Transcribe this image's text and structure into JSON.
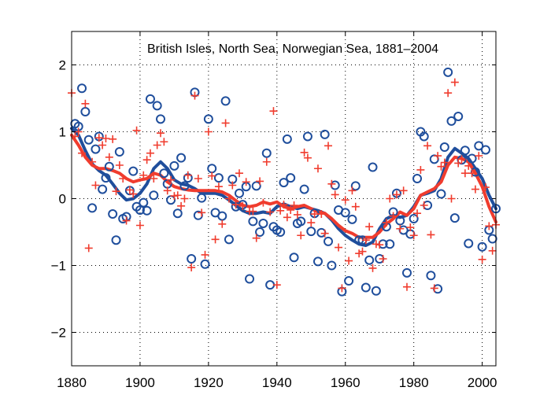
{
  "chart_data": {
    "type": "scatter",
    "title": "British Isles, North Sea, Norwegian Sea, 1881–2004",
    "xlabel": "",
    "ylabel": "",
    "xlim": [
      1880,
      2004
    ],
    "ylim": [
      -2.5,
      2.5
    ],
    "x_ticks": [
      1880,
      1900,
      1920,
      1940,
      1960,
      1980,
      2000
    ],
    "y_ticks": [
      -2,
      -1,
      0,
      1,
      2
    ],
    "grid": true,
    "legend": "none",
    "colors": {
      "blue": "#1f4e9c",
      "red": "#f03c2e"
    },
    "series": [
      {
        "name": "circles",
        "type": "scatter",
        "marker": "circle",
        "color": "#1f4e9c",
        "x": [
          1881,
          1882,
          1883,
          1884,
          1885,
          1886,
          1887,
          1888,
          1889,
          1890,
          1891,
          1892,
          1893,
          1894,
          1895,
          1896,
          1897,
          1898,
          1899,
          1900,
          1901,
          1902,
          1903,
          1904,
          1905,
          1906,
          1907,
          1908,
          1909,
          1910,
          1911,
          1912,
          1913,
          1914,
          1915,
          1916,
          1917,
          1918,
          1919,
          1920,
          1921,
          1922,
          1923,
          1924,
          1925,
          1926,
          1927,
          1928,
          1929,
          1930,
          1931,
          1932,
          1933,
          1934,
          1935,
          1936,
          1937,
          1938,
          1939,
          1940,
          1941,
          1942,
          1943,
          1944,
          1945,
          1946,
          1947,
          1948,
          1949,
          1950,
          1951,
          1952,
          1953,
          1954,
          1955,
          1956,
          1957,
          1958,
          1959,
          1960,
          1961,
          1962,
          1963,
          1964,
          1965,
          1966,
          1967,
          1968,
          1969,
          1970,
          1971,
          1972,
          1973,
          1974,
          1975,
          1976,
          1977,
          1978,
          1979,
          1980,
          1981,
          1982,
          1983,
          1984,
          1985,
          1986,
          1987,
          1988,
          1989,
          1990,
          1991,
          1992,
          1993,
          1994,
          1995,
          1996,
          1997,
          1998,
          1999,
          2000,
          2001,
          2002,
          2003,
          2004
        ],
        "y": [
          1.12,
          1.08,
          1.65,
          1.3,
          0.88,
          -0.14,
          0.74,
          0.93,
          0.14,
          0.31,
          0.48,
          -0.23,
          -0.62,
          0.7,
          -0.3,
          -0.27,
          0.12,
          0.41,
          -0.12,
          -0.17,
          -0.06,
          -0.18,
          1.49,
          0.05,
          1.39,
          1.19,
          0.38,
          0.22,
          -0.02,
          0.49,
          -0.22,
          0.61,
          0.19,
          0.31,
          -0.9,
          1.59,
          -0.25,
          0.01,
          -0.98,
          1.19,
          0.45,
          -0.21,
          0.31,
          -0.26,
          1.46,
          -0.61,
          0.29,
          -0.12,
          0.08,
          -0.09,
          0.18,
          -1.2,
          -0.34,
          0.19,
          -0.5,
          -0.37,
          0.68,
          -1.29,
          -0.42,
          -0.47,
          -0.5,
          0.24,
          0.89,
          0.31,
          -0.88,
          -0.37,
          -0.34,
          0.14,
          0.93,
          -0.49,
          -0.22,
          -0.94,
          -0.51,
          0.96,
          -0.64,
          -1.0,
          0.2,
          -0.17,
          -1.39,
          -0.21,
          -1.23,
          -0.31,
          0.19,
          -0.62,
          -0.62,
          -1.33,
          -0.92,
          0.47,
          -1.38,
          -0.9,
          -0.68,
          -0.42,
          -0.68,
          -0.2,
          0.08,
          -0.33,
          -0.47,
          -1.11,
          -0.53,
          -0.3,
          0.3,
          1.0,
          0.93,
          -0.1,
          -1.15,
          0.59,
          -1.35,
          0.07,
          0.77,
          1.89,
          1.16,
          -0.29,
          1.23,
          0.58,
          0.72,
          -0.67,
          0.6,
          0.4,
          0.79,
          -0.72,
          0.73,
          -0.47,
          -0.6,
          -0.15
        ]
      },
      {
        "name": "crosses",
        "type": "scatter",
        "marker": "plus",
        "color": "#f03c2e",
        "x": [
          1880,
          1881,
          1882,
          1883,
          1884,
          1885,
          1886,
          1887,
          1888,
          1889,
          1890,
          1891,
          1892,
          1893,
          1894,
          1895,
          1896,
          1897,
          1898,
          1899,
          1900,
          1901,
          1902,
          1903,
          1904,
          1905,
          1906,
          1907,
          1908,
          1909,
          1910,
          1911,
          1912,
          1913,
          1914,
          1915,
          1916,
          1917,
          1918,
          1919,
          1920,
          1921,
          1922,
          1923,
          1924,
          1925,
          1926,
          1927,
          1928,
          1929,
          1930,
          1931,
          1932,
          1933,
          1934,
          1935,
          1936,
          1937,
          1938,
          1939,
          1940,
          1941,
          1942,
          1943,
          1944,
          1945,
          1946,
          1947,
          1948,
          1949,
          1950,
          1951,
          1952,
          1953,
          1954,
          1955,
          1956,
          1957,
          1958,
          1959,
          1960,
          1961,
          1962,
          1963,
          1964,
          1965,
          1966,
          1967,
          1968,
          1969,
          1970,
          1971,
          1972,
          1973,
          1974,
          1975,
          1976,
          1977,
          1978,
          1979,
          1980,
          1981,
          1982,
          1983,
          1984,
          1985,
          1986,
          1987,
          1988,
          1989,
          1990,
          1991,
          1992,
          1993,
          1994,
          1995,
          1996,
          1997,
          1998,
          1999,
          2000,
          2001,
          2002,
          2003,
          2004
        ],
        "y": [
          1.58,
          0.93,
          1.0,
          0.68,
          1.42,
          -0.74,
          0.55,
          0.2,
          0.91,
          0.8,
          0.9,
          0.62,
          0.89,
          0.11,
          0.5,
          0.3,
          -0.33,
          0.13,
          0.07,
          1.02,
          -0.4,
          0.35,
          0.58,
          0.68,
          0.3,
          0.8,
          0.98,
          0.85,
          0.12,
          0.28,
          0.04,
          0.05,
          -0.11,
          0.0,
          0.35,
          -1.03,
          1.54,
          0.3,
          -0.21,
          -0.84,
          1.0,
          0.34,
          -0.61,
          0.18,
          -0.38,
          1.13,
          0.0,
          0.2,
          -0.09,
          0.38,
          -0.11,
          0.25,
          -0.19,
          -0.19,
          -0.59,
          0.26,
          -0.06,
          0.55,
          -0.2,
          1.31,
          -1.29,
          -0.18,
          -0.09,
          -0.28,
          -0.17,
          -0.1,
          -0.24,
          -0.55,
          0.69,
          0.61,
          -0.36,
          -0.23,
          0.45,
          -0.23,
          -0.52,
          0.79,
          0.22,
          0.06,
          -0.73,
          -1.34,
          -0.02,
          -0.93,
          0.12,
          -0.12,
          -0.82,
          -0.79,
          -0.62,
          -0.42,
          -1.04,
          -0.68,
          -0.69,
          -0.9,
          -0.36,
          0.0,
          -0.26,
          0.06,
          -0.45,
          0.12,
          -1.32,
          -0.43,
          -0.55,
          -0.22,
          0.43,
          -0.1,
          0.79,
          -0.54,
          -1.34,
          0.64,
          0.48,
          0.54,
          1.58,
          0.0,
          1.74,
          0.53,
          0.59,
          0.38,
          0.49,
          0.38,
          0.14,
          0.64,
          -0.91,
          0.17,
          -0.41,
          -0.78,
          -0.39
        ]
      },
      {
        "name": "blue-smooth",
        "type": "line",
        "color": "#1f4e9c",
        "x": [
          1880,
          1882,
          1884,
          1886,
          1888,
          1890,
          1892,
          1894,
          1896,
          1898,
          1900,
          1902,
          1904,
          1906,
          1908,
          1910,
          1912,
          1914,
          1916,
          1918,
          1920,
          1922,
          1924,
          1926,
          1928,
          1930,
          1932,
          1934,
          1936,
          1938,
          1940,
          1942,
          1944,
          1946,
          1948,
          1950,
          1952,
          1954,
          1956,
          1958,
          1960,
          1962,
          1964,
          1966,
          1968,
          1970,
          1972,
          1974,
          1976,
          1978,
          1980,
          1982,
          1984,
          1986,
          1988,
          1990,
          1992,
          1994,
          1996,
          1998,
          2000,
          2002,
          2004
        ],
        "y": [
          1.05,
          0.95,
          0.72,
          0.52,
          0.42,
          0.35,
          0.22,
          0.08,
          -0.02,
          0.0,
          0.08,
          0.22,
          0.45,
          0.55,
          0.45,
          0.28,
          0.22,
          0.2,
          0.15,
          0.08,
          0.08,
          0.08,
          0.05,
          -0.02,
          -0.1,
          -0.18,
          -0.22,
          -0.22,
          -0.2,
          -0.22,
          -0.12,
          -0.08,
          -0.12,
          -0.15,
          -0.12,
          -0.15,
          -0.18,
          -0.22,
          -0.32,
          -0.45,
          -0.55,
          -0.62,
          -0.68,
          -0.7,
          -0.65,
          -0.45,
          -0.3,
          -0.25,
          -0.28,
          -0.25,
          -0.12,
          0.05,
          0.08,
          0.12,
          0.3,
          0.62,
          0.75,
          0.68,
          0.6,
          0.45,
          0.3,
          0.05,
          -0.15
        ]
      },
      {
        "name": "red-smooth",
        "type": "line",
        "color": "#f03c2e",
        "x": [
          1880,
          1882,
          1884,
          1886,
          1888,
          1890,
          1892,
          1894,
          1896,
          1898,
          1900,
          1902,
          1904,
          1906,
          1908,
          1910,
          1912,
          1914,
          1916,
          1918,
          1920,
          1922,
          1924,
          1926,
          1928,
          1930,
          1932,
          1934,
          1936,
          1938,
          1940,
          1942,
          1944,
          1946,
          1948,
          1950,
          1952,
          1954,
          1956,
          1958,
          1960,
          1962,
          1964,
          1966,
          1968,
          1970,
          1972,
          1974,
          1976,
          1978,
          1980,
          1982,
          1984,
          1986,
          1988,
          1990,
          1992,
          1994,
          1996,
          1998,
          2000,
          2002,
          2004
        ],
        "y": [
          0.95,
          0.8,
          0.62,
          0.5,
          0.45,
          0.45,
          0.42,
          0.38,
          0.3,
          0.25,
          0.28,
          0.3,
          0.38,
          0.35,
          0.25,
          0.18,
          0.15,
          0.13,
          0.12,
          0.12,
          0.12,
          0.12,
          0.1,
          0.05,
          -0.03,
          -0.1,
          -0.12,
          -0.1,
          -0.05,
          -0.08,
          -0.05,
          -0.12,
          -0.15,
          -0.12,
          -0.1,
          -0.15,
          -0.2,
          -0.22,
          -0.3,
          -0.4,
          -0.48,
          -0.52,
          -0.58,
          -0.58,
          -0.58,
          -0.5,
          -0.38,
          -0.3,
          -0.2,
          -0.25,
          -0.15,
          0.05,
          0.1,
          0.15,
          0.25,
          0.5,
          0.62,
          0.6,
          0.55,
          0.38,
          0.18,
          -0.12,
          -0.35
        ]
      }
    ]
  }
}
